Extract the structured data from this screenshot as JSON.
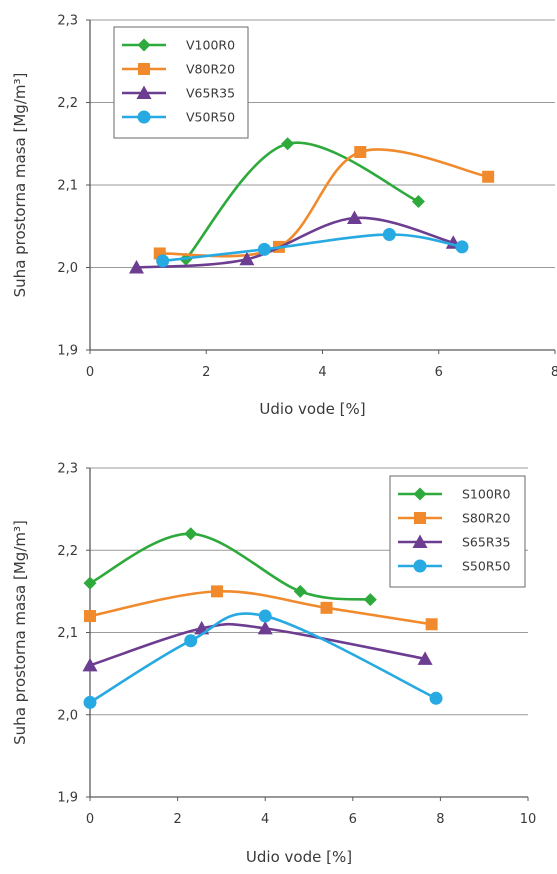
{
  "chart_data": [
    {
      "type": "line",
      "xlabel": "Udio vode [%]",
      "ylabel": "Suha prostorna masa [Mg/m³]",
      "xlim": [
        0,
        8
      ],
      "ylim": [
        1.9,
        2.3
      ],
      "xticks": [
        0,
        2,
        4,
        6,
        8
      ],
      "xtick_labels": [
        "0",
        "2",
        "4",
        "6",
        "8"
      ],
      "yticks": [
        1.9,
        2.0,
        2.1,
        2.2,
        2.3
      ],
      "ytick_labels": [
        "1,9",
        "2,0",
        "2,1",
        "2,2",
        "2,3"
      ],
      "grid": "horizontal",
      "legend_position": "top-left",
      "series": [
        {
          "name": "V100R0",
          "color": "#2eaa3c",
          "marker": "diamond",
          "x": [
            1.65,
            3.4,
            5.65
          ],
          "y": [
            2.01,
            2.15,
            2.08
          ]
        },
        {
          "name": "V80R20",
          "color": "#f08a2c",
          "marker": "square",
          "x": [
            1.2,
            3.25,
            4.65,
            6.85
          ],
          "y": [
            2.017,
            2.025,
            2.14,
            2.11
          ]
        },
        {
          "name": "V65R35",
          "color": "#6c3d91",
          "marker": "triangle",
          "x": [
            0.8,
            2.7,
            4.55,
            6.25
          ],
          "y": [
            2.0,
            2.01,
            2.06,
            2.03
          ]
        },
        {
          "name": "V50R50",
          "color": "#27a9e1",
          "marker": "circle",
          "x": [
            1.25,
            3.0,
            5.15,
            6.4
          ],
          "y": [
            2.008,
            2.022,
            2.04,
            2.025
          ]
        }
      ]
    },
    {
      "type": "line",
      "xlabel": "Udio vode [%]",
      "ylabel": "Suha prostorna masa [Mg/m³]",
      "xlim": [
        0,
        10
      ],
      "ylim": [
        1.9,
        2.3
      ],
      "xticks": [
        0,
        2,
        4,
        6,
        8,
        10
      ],
      "xtick_labels": [
        "0",
        "2",
        "4",
        "6",
        "8",
        "10"
      ],
      "yticks": [
        1.9,
        2.0,
        2.1,
        2.2,
        2.3
      ],
      "ytick_labels": [
        "1,9",
        "2,0",
        "2,1",
        "2,2",
        "2,3"
      ],
      "grid": "horizontal",
      "legend_position": "top-right",
      "series": [
        {
          "name": "S100R0",
          "color": "#2eaa3c",
          "marker": "diamond",
          "x": [
            0.0,
            2.3,
            4.8,
            6.4
          ],
          "y": [
            2.16,
            2.22,
            2.15,
            2.14
          ]
        },
        {
          "name": "S80R20",
          "color": "#f08a2c",
          "marker": "square",
          "x": [
            0.0,
            2.9,
            5.4,
            7.8
          ],
          "y": [
            2.12,
            2.15,
            2.13,
            2.11
          ]
        },
        {
          "name": "S65R35",
          "color": "#6c3d91",
          "marker": "triangle",
          "x": [
            0.0,
            2.55,
            4.0,
            7.65
          ],
          "y": [
            2.06,
            2.105,
            2.105,
            2.068
          ]
        },
        {
          "name": "S50R50",
          "color": "#27a9e1",
          "marker": "circle",
          "x": [
            0.0,
            2.3,
            4.0,
            7.9
          ],
          "y": [
            2.015,
            2.09,
            2.12,
            2.02
          ]
        }
      ]
    }
  ]
}
